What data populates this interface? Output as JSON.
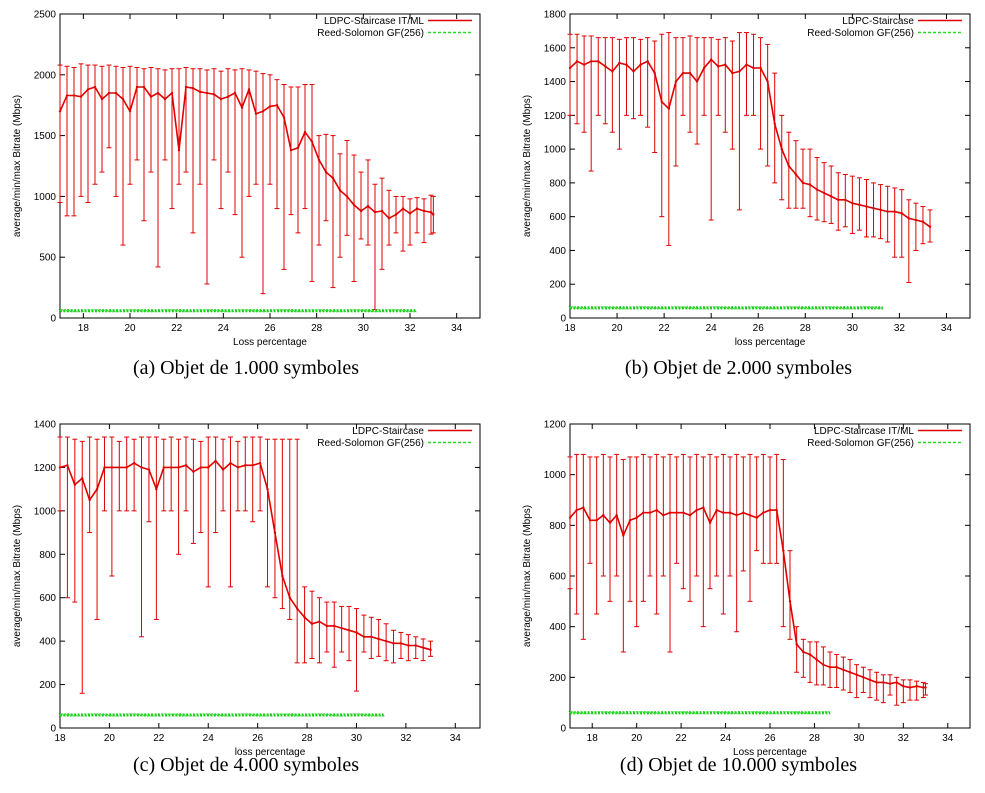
{
  "colors": {
    "ldpc": "#e00000",
    "rs": "#22dd22",
    "axis": "#000000"
  },
  "chart_data": [
    {
      "id": "a",
      "type": "line",
      "caption": "(a)  Objet de 1.000 symboles",
      "xlabel": "Loss percentage",
      "ylabel": "average/min/max Bitrate (Mbps)",
      "xlim": [
        17,
        35
      ],
      "ylim": [
        0,
        2500
      ],
      "xticks": [
        18,
        20,
        22,
        24,
        26,
        28,
        30,
        32,
        34
      ],
      "yticks": [
        0,
        500,
        1000,
        1500,
        2000,
        2500
      ],
      "legend_position": "top-right",
      "series": [
        {
          "name": "LDPC-Staircase IT/ML",
          "style": "errorbars",
          "x": [
            17.0,
            17.3,
            17.6,
            17.9,
            18.2,
            18.5,
            18.8,
            19.1,
            19.4,
            19.7,
            20.0,
            20.3,
            20.6,
            20.9,
            21.2,
            21.5,
            21.8,
            22.1,
            22.4,
            22.7,
            23.0,
            23.3,
            23.6,
            23.9,
            24.2,
            24.5,
            24.8,
            25.1,
            25.4,
            25.7,
            26.0,
            26.3,
            26.6,
            26.9,
            27.2,
            27.5,
            27.8,
            28.1,
            28.4,
            28.7,
            29.0,
            29.3,
            29.6,
            29.9,
            30.2,
            30.5,
            30.8,
            31.1,
            31.4,
            31.7,
            32.0,
            32.3,
            32.6,
            32.9,
            33.0
          ],
          "y": [
            1700,
            1830,
            1830,
            1820,
            1880,
            1900,
            1800,
            1850,
            1850,
            1800,
            1700,
            1900,
            1900,
            1820,
            1850,
            1800,
            1850,
            1380,
            1900,
            1890,
            1860,
            1850,
            1840,
            1800,
            1820,
            1850,
            1730,
            1880,
            1680,
            1700,
            1740,
            1750,
            1650,
            1380,
            1400,
            1530,
            1450,
            1300,
            1200,
            1150,
            1050,
            1000,
            930,
            880,
            920,
            870,
            880,
            820,
            850,
            900,
            860,
            900,
            880,
            870,
            850
          ],
          "ymin": [
            950,
            840,
            840,
            1000,
            950,
            1100,
            1200,
            1400,
            1000,
            600,
            1100,
            1300,
            800,
            1200,
            420,
            1300,
            900,
            1100,
            1200,
            700,
            1100,
            280,
            1300,
            900,
            1200,
            850,
            500,
            1000,
            1100,
            200,
            1100,
            900,
            400,
            850,
            700,
            900,
            300,
            600,
            800,
            250,
            500,
            680,
            300,
            650,
            600,
            70,
            400,
            600,
            700,
            550,
            600,
            700,
            620,
            690,
            700
          ],
          "ymax": [
            2080,
            2070,
            2060,
            2090,
            2080,
            2080,
            2070,
            2080,
            2070,
            2060,
            2070,
            2060,
            2050,
            2060,
            2050,
            2040,
            2050,
            2050,
            2060,
            2050,
            2050,
            2040,
            2050,
            2030,
            2050,
            2040,
            2050,
            2040,
            2030,
            2010,
            2000,
            1960,
            1920,
            1900,
            1900,
            1920,
            1920,
            1500,
            1510,
            1500,
            1350,
            1460,
            1340,
            1200,
            1300,
            1100,
            1150,
            1050,
            1000,
            1000,
            980,
            990,
            980,
            1010,
            1000
          ]
        },
        {
          "name": "Reed-Solomon GF(256)",
          "style": "dashed-points",
          "x": [
            17,
            32.3
          ],
          "y": [
            60,
            60
          ]
        }
      ]
    },
    {
      "id": "b",
      "type": "line",
      "caption": "(b)  Objet de 2.000 symboles",
      "xlabel": "loss percentage",
      "ylabel": "average/min/max Bitrate (Mbps)",
      "xlim": [
        18,
        35
      ],
      "ylim": [
        0,
        1800
      ],
      "xticks": [
        18,
        20,
        22,
        24,
        26,
        28,
        30,
        32,
        34
      ],
      "yticks": [
        0,
        200,
        400,
        600,
        800,
        1000,
        1200,
        1400,
        1600,
        1800
      ],
      "legend_position": "top-right",
      "series": [
        {
          "name": "LDPC-Staircase",
          "style": "errorbars",
          "x": [
            18.0,
            18.3,
            18.6,
            18.9,
            19.2,
            19.5,
            19.8,
            20.1,
            20.4,
            20.7,
            21.0,
            21.3,
            21.6,
            21.9,
            22.2,
            22.5,
            22.8,
            23.1,
            23.4,
            23.7,
            24.0,
            24.3,
            24.6,
            24.9,
            25.2,
            25.5,
            25.8,
            26.1,
            26.4,
            26.7,
            27.0,
            27.3,
            27.6,
            27.9,
            28.2,
            28.5,
            28.8,
            29.1,
            29.4,
            29.7,
            30.0,
            30.3,
            30.6,
            30.9,
            31.2,
            31.5,
            31.8,
            32.1,
            32.4,
            32.7,
            33.0,
            33.3
          ],
          "y": [
            1480,
            1520,
            1500,
            1520,
            1520,
            1490,
            1460,
            1510,
            1500,
            1460,
            1500,
            1520,
            1450,
            1280,
            1240,
            1400,
            1450,
            1450,
            1400,
            1480,
            1530,
            1490,
            1500,
            1450,
            1460,
            1500,
            1480,
            1480,
            1400,
            1150,
            1000,
            900,
            850,
            800,
            790,
            760,
            740,
            720,
            700,
            700,
            680,
            670,
            660,
            650,
            640,
            630,
            630,
            620,
            590,
            580,
            570,
            540
          ],
          "ymin": [
            1200,
            1150,
            1100,
            870,
            1200,
            1150,
            1100,
            1000,
            1200,
            1180,
            1200,
            1130,
            980,
            600,
            430,
            900,
            1200,
            1100,
            1030,
            1200,
            580,
            1200,
            1100,
            1000,
            640,
            1200,
            1200,
            1000,
            900,
            800,
            700,
            650,
            650,
            650,
            600,
            580,
            570,
            560,
            520,
            540,
            500,
            520,
            480,
            480,
            470,
            450,
            360,
            360,
            210,
            400,
            440,
            450
          ],
          "ymax": [
            1680,
            1680,
            1670,
            1670,
            1660,
            1660,
            1660,
            1650,
            1660,
            1660,
            1650,
            1660,
            1640,
            1680,
            1690,
            1660,
            1660,
            1670,
            1660,
            1660,
            1660,
            1650,
            1660,
            1640,
            1690,
            1690,
            1680,
            1660,
            1620,
            1450,
            1200,
            1100,
            1050,
            1000,
            1000,
            950,
            920,
            900,
            860,
            850,
            840,
            830,
            820,
            800,
            790,
            780,
            770,
            760,
            700,
            680,
            660,
            640
          ]
        },
        {
          "name": "Reed-Solomon GF(256)",
          "style": "dashed-points",
          "x": [
            18,
            31.3
          ],
          "y": [
            60,
            60
          ]
        }
      ]
    },
    {
      "id": "c",
      "type": "line",
      "caption": "(c)  Objet de 4.000 symboles",
      "xlabel": "loss percentage",
      "ylabel": "average/min/max Bitrate (Mbps)",
      "xlim": [
        18,
        35
      ],
      "ylim": [
        0,
        1400
      ],
      "xticks": [
        18,
        20,
        22,
        24,
        26,
        28,
        30,
        32,
        34
      ],
      "yticks": [
        0,
        200,
        400,
        600,
        800,
        1000,
        1200,
        1400
      ],
      "legend_position": "top-right",
      "series": [
        {
          "name": "LDPC-Staircase",
          "style": "errorbars",
          "x": [
            18.0,
            18.3,
            18.6,
            18.9,
            19.2,
            19.5,
            19.8,
            20.1,
            20.4,
            20.7,
            21.0,
            21.3,
            21.6,
            21.9,
            22.2,
            22.5,
            22.8,
            23.1,
            23.4,
            23.7,
            24.0,
            24.3,
            24.6,
            24.9,
            25.2,
            25.5,
            25.8,
            26.1,
            26.4,
            26.7,
            27.0,
            27.3,
            27.6,
            27.9,
            28.2,
            28.5,
            28.8,
            29.1,
            29.4,
            29.7,
            30.0,
            30.3,
            30.6,
            30.9,
            31.2,
            31.5,
            31.8,
            32.1,
            32.4,
            32.7,
            33.0
          ],
          "y": [
            1200,
            1210,
            1120,
            1150,
            1050,
            1100,
            1200,
            1200,
            1200,
            1200,
            1220,
            1200,
            1190,
            1100,
            1200,
            1200,
            1200,
            1210,
            1180,
            1200,
            1200,
            1230,
            1190,
            1220,
            1200,
            1210,
            1210,
            1220,
            1100,
            900,
            700,
            600,
            550,
            510,
            480,
            490,
            470,
            470,
            460,
            450,
            440,
            420,
            420,
            410,
            400,
            390,
            390,
            380,
            380,
            370,
            360
          ],
          "ymin": [
            1000,
            600,
            580,
            160,
            900,
            500,
            1000,
            700,
            1000,
            1000,
            1000,
            420,
            950,
            500,
            1000,
            1000,
            800,
            1000,
            850,
            900,
            650,
            900,
            1000,
            650,
            1000,
            1000,
            950,
            1000,
            650,
            600,
            550,
            500,
            300,
            300,
            320,
            300,
            350,
            280,
            350,
            310,
            170,
            350,
            320,
            330,
            310,
            300,
            320,
            310,
            320,
            310,
            330
          ],
          "ymax": [
            1340,
            1340,
            1330,
            1320,
            1340,
            1330,
            1340,
            1340,
            1320,
            1340,
            1330,
            1340,
            1340,
            1340,
            1330,
            1340,
            1330,
            1340,
            1330,
            1320,
            1340,
            1340,
            1330,
            1340,
            1320,
            1340,
            1340,
            1340,
            1330,
            1330,
            1330,
            1330,
            1330,
            650,
            630,
            600,
            580,
            580,
            560,
            560,
            550,
            520,
            510,
            500,
            480,
            450,
            440,
            430,
            420,
            410,
            400
          ]
        },
        {
          "name": "Reed-Solomon GF(256)",
          "style": "dashed-points",
          "x": [
            18,
            31.1
          ],
          "y": [
            60,
            60
          ]
        }
      ]
    },
    {
      "id": "d",
      "type": "line",
      "caption": "(d)  Objet de 10.000 symboles",
      "xlabel": "Loss percentage",
      "ylabel": "average/min/max Bitrate (Mbps)",
      "xlim": [
        17,
        35
      ],
      "ylim": [
        0,
        1200
      ],
      "xticks": [
        18,
        20,
        22,
        24,
        26,
        28,
        30,
        32,
        34
      ],
      "yticks": [
        0,
        200,
        400,
        600,
        800,
        1000,
        1200
      ],
      "legend_position": "top-right",
      "series": [
        {
          "name": "LDPC-Staircase IT/ML",
          "style": "errorbars",
          "x": [
            17.0,
            17.3,
            17.6,
            17.9,
            18.2,
            18.5,
            18.8,
            19.1,
            19.4,
            19.7,
            20.0,
            20.3,
            20.6,
            20.9,
            21.2,
            21.5,
            21.8,
            22.1,
            22.4,
            22.7,
            23.0,
            23.3,
            23.6,
            23.9,
            24.2,
            24.5,
            24.8,
            25.1,
            25.4,
            25.7,
            26.0,
            26.3,
            26.6,
            26.9,
            27.2,
            27.5,
            27.8,
            28.1,
            28.4,
            28.7,
            29.0,
            29.3,
            29.6,
            29.9,
            30.2,
            30.5,
            30.8,
            31.1,
            31.4,
            31.7,
            32.0,
            32.3,
            32.6,
            32.9,
            33.0
          ],
          "y": [
            830,
            860,
            870,
            820,
            820,
            840,
            810,
            840,
            760,
            820,
            830,
            850,
            850,
            860,
            840,
            850,
            850,
            850,
            840,
            860,
            870,
            810,
            860,
            850,
            850,
            840,
            850,
            840,
            830,
            850,
            860,
            860,
            700,
            500,
            330,
            300,
            290,
            270,
            250,
            240,
            240,
            230,
            220,
            210,
            200,
            190,
            180,
            180,
            175,
            180,
            165,
            160,
            165,
            160,
            160
          ],
          "ymin": [
            550,
            450,
            350,
            650,
            450,
            600,
            500,
            600,
            300,
            500,
            400,
            500,
            600,
            450,
            600,
            300,
            650,
            550,
            500,
            600,
            400,
            550,
            600,
            450,
            600,
            380,
            620,
            500,
            700,
            650,
            650,
            650,
            400,
            350,
            220,
            200,
            180,
            170,
            170,
            160,
            160,
            150,
            140,
            120,
            140,
            120,
            110,
            100,
            130,
            90,
            100,
            110,
            110,
            120,
            130
          ],
          "ymax": [
            1070,
            1080,
            1080,
            1070,
            1070,
            1080,
            1070,
            1080,
            1060,
            1070,
            1070,
            1080,
            1070,
            1080,
            1070,
            1080,
            1070,
            1080,
            1070,
            1080,
            1070,
            1080,
            1070,
            1080,
            1070,
            1080,
            1070,
            1080,
            1070,
            1080,
            1070,
            1080,
            1060,
            700,
            400,
            350,
            340,
            340,
            320,
            300,
            290,
            280,
            270,
            250,
            240,
            230,
            220,
            210,
            210,
            200,
            190,
            190,
            185,
            180,
            175
          ]
        },
        {
          "name": "Reed-Solomon GF(256)",
          "style": "dashed-points",
          "x": [
            17,
            28.7
          ],
          "y": [
            60,
            60
          ]
        }
      ]
    }
  ]
}
